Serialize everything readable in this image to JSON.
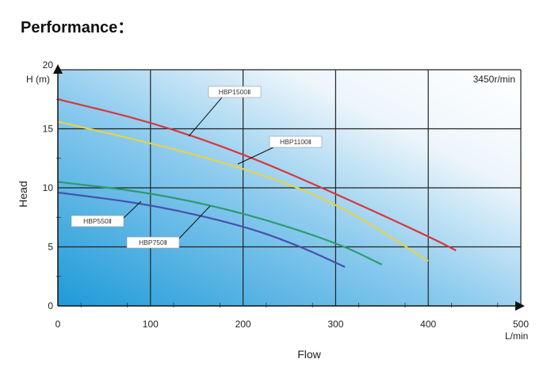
{
  "page_title": "Performance：",
  "chart_data": {
    "type": "line",
    "xlabel": "Flow",
    "ylabel": "Head",
    "x_unit": "L/min",
    "y_unit": "H (m)",
    "speed_note": "3450r/min",
    "xlim": [
      0,
      500
    ],
    "ylim": [
      0,
      20
    ],
    "x_ticks": [
      "0",
      "100",
      "200",
      "300",
      "400",
      "500"
    ],
    "y_ticks": [
      "0",
      "5",
      "10",
      "15",
      "20"
    ],
    "grid": true,
    "series": [
      {
        "name": "HBP1500Ⅱ",
        "color": "#d9373b",
        "x": [
          0,
          100,
          200,
          300,
          400,
          430
        ],
        "y": [
          17.5,
          15.6,
          12.9,
          9.5,
          5.9,
          4.7
        ]
      },
      {
        "name": "HBP1100Ⅱ",
        "color": "#e6d24c",
        "x": [
          0,
          100,
          200,
          300,
          400
        ],
        "y": [
          15.6,
          13.8,
          11.7,
          8.8,
          3.8
        ]
      },
      {
        "name": "HBP550Ⅱ",
        "color": "#2e9a6e",
        "x": [
          0,
          100,
          200,
          300,
          350
        ],
        "y": [
          10.5,
          9.6,
          7.9,
          5.4,
          3.5
        ]
      },
      {
        "name": "HBP750Ⅱ",
        "color": "#4a4fae",
        "x": [
          0,
          100,
          200,
          260,
          310
        ],
        "y": [
          9.6,
          8.6,
          6.8,
          5.1,
          3.3
        ]
      }
    ]
  }
}
